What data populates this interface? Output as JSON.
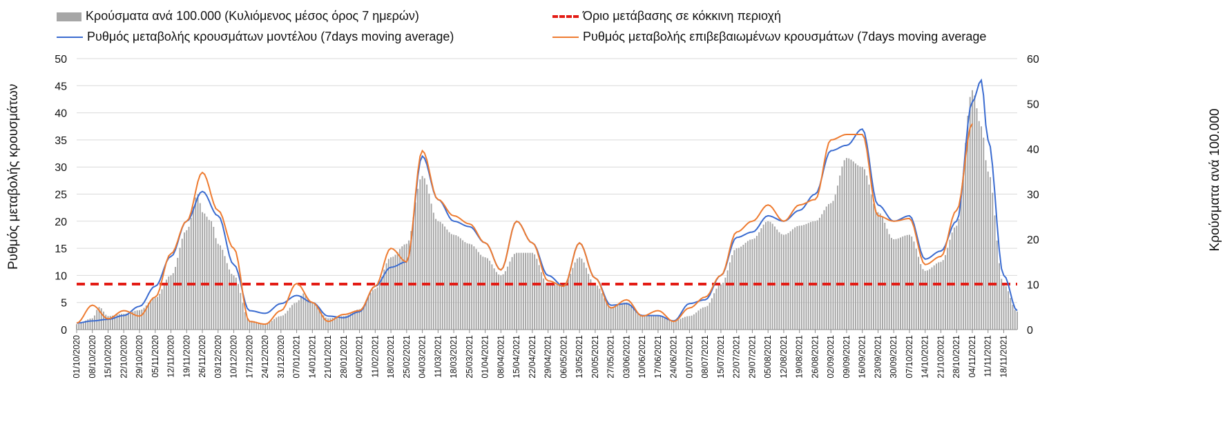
{
  "legend": {
    "bars": "Κρούσματα ανά 100.000 (Κυλιόμενος μέσος όρος 7 ημερών)",
    "threshold": "Όριο μετάβασης σε κόκκινη περιοχή",
    "model": "Ρυθμός μεταβολής κρουσμάτων μοντέλου (7days moving average)",
    "confirmed": "Ρυθμός μεταβολής επιβεβαιωμένων κρουσμάτων (7days moving average"
  },
  "colors": {
    "bars": "#a6a6a6",
    "threshold": "#e31b14",
    "model": "#3a6bd0",
    "confirmed": "#ee7b30",
    "grid": "#d9d9d9"
  },
  "chart_data": {
    "type": "bar",
    "ylabel_left": "Ρυθμός μεταβολής κρουσμάτων",
    "ylabel_right": "Κρούσματα ανά 100.000",
    "ylim_left": [
      0,
      50
    ],
    "ylim_right": [
      0,
      60
    ],
    "yticks_left": [
      "0",
      "5",
      "10",
      "15",
      "20",
      "25",
      "30",
      "35",
      "40",
      "45",
      "50"
    ],
    "yticks_right": [
      "0",
      "10",
      "20",
      "30",
      "40",
      "50",
      "60"
    ],
    "grid": true,
    "legend_position": "top",
    "x_start": "01/10/2020",
    "x_end": "24/11/2021",
    "x_tick_labels": [
      "01/10/2020",
      "08/10/2020",
      "15/10/2020",
      "22/10/2020",
      "29/10/2020",
      "05/11/2020",
      "12/11/2020",
      "19/11/2020",
      "26/11/2020",
      "03/12/2020",
      "10/12/2020",
      "17/12/2020",
      "24/12/2020",
      "31/12/2020",
      "07/01/2021",
      "14/01/2021",
      "21/01/2021",
      "28/01/2021",
      "04/02/2021",
      "11/02/2021",
      "18/02/2021",
      "25/02/2021",
      "04/03/2021",
      "11/03/2021",
      "18/03/2021",
      "25/03/2021",
      "01/04/2021",
      "08/04/2021",
      "15/04/2021",
      "22/04/2021",
      "29/04/2021",
      "06/05/2021",
      "13/05/2021",
      "20/05/2021",
      "27/05/2021",
      "03/06/2021",
      "10/06/2021",
      "17/06/2021",
      "24/06/2021",
      "01/07/2021",
      "08/07/2021",
      "15/07/2021",
      "22/07/2021",
      "29/07/2021",
      "05/08/2021",
      "12/08/2021",
      "19/08/2021",
      "26/08/2021",
      "02/09/2021",
      "09/09/2021",
      "16/09/2021",
      "23/09/2021",
      "30/09/2021",
      "07/10/2021",
      "14/10/2021",
      "21/10/2021",
      "28/10/2021",
      "04/11/2021",
      "11/11/2021",
      "18/11/2021"
    ],
    "threshold": {
      "name": "Όριο μετάβασης σε κόκκινη περιοχή",
      "value_left": 8.4
    },
    "series": [
      {
        "name": "Κρούσματα ανά 100.000 (Κυλιόμενος μέσος όρος 7 ημερών)",
        "axis": "right",
        "kind": "bar",
        "points": [
          [
            "01/10/2020",
            1.2
          ],
          [
            "08/10/2020",
            2.5
          ],
          [
            "11/10/2020",
            5
          ],
          [
            "15/10/2020",
            3
          ],
          [
            "22/10/2020",
            3.5
          ],
          [
            "29/10/2020",
            4.3
          ],
          [
            "05/11/2020",
            7
          ],
          [
            "12/11/2020",
            12
          ],
          [
            "19/11/2020",
            22
          ],
          [
            "24/11/2020",
            30
          ],
          [
            "26/11/2020",
            26
          ],
          [
            "30/11/2020",
            24
          ],
          [
            "03/12/2020",
            19
          ],
          [
            "10/12/2020",
            12
          ],
          [
            "17/12/2020",
            2
          ],
          [
            "24/12/2020",
            1.3
          ],
          [
            "31/12/2020",
            3
          ],
          [
            "07/01/2021",
            6
          ],
          [
            "10/01/2021",
            8
          ],
          [
            "14/01/2021",
            6
          ],
          [
            "21/01/2021",
            2.5
          ],
          [
            "28/01/2021",
            3
          ],
          [
            "04/02/2021",
            4.5
          ],
          [
            "11/02/2021",
            9
          ],
          [
            "18/02/2021",
            16
          ],
          [
            "25/02/2021",
            19
          ],
          [
            "04/03/2021",
            34
          ],
          [
            "11/03/2021",
            24
          ],
          [
            "18/03/2021",
            21
          ],
          [
            "25/03/2021",
            19
          ],
          [
            "01/04/2021",
            16
          ],
          [
            "08/04/2021",
            12
          ],
          [
            "15/04/2021",
            17
          ],
          [
            "22/04/2021",
            17
          ],
          [
            "29/04/2021",
            10
          ],
          [
            "06/05/2021",
            10
          ],
          [
            "13/05/2021",
            16
          ],
          [
            "20/05/2021",
            10
          ],
          [
            "27/05/2021",
            5
          ],
          [
            "03/06/2021",
            6
          ],
          [
            "10/06/2021",
            3
          ],
          [
            "17/06/2021",
            3
          ],
          [
            "24/06/2021",
            2
          ],
          [
            "01/07/2021",
            3
          ],
          [
            "08/07/2021",
            5
          ],
          [
            "15/07/2021",
            10
          ],
          [
            "22/07/2021",
            18
          ],
          [
            "29/07/2021",
            20
          ],
          [
            "05/08/2021",
            24
          ],
          [
            "12/08/2021",
            21
          ],
          [
            "19/08/2021",
            23
          ],
          [
            "26/08/2021",
            24
          ],
          [
            "02/09/2021",
            28
          ],
          [
            "09/09/2021",
            38
          ],
          [
            "16/09/2021",
            36
          ],
          [
            "23/09/2021",
            26
          ],
          [
            "30/09/2021",
            20
          ],
          [
            "07/10/2021",
            21
          ],
          [
            "14/10/2021",
            13
          ],
          [
            "21/10/2021",
            15
          ],
          [
            "28/10/2021",
            23
          ],
          [
            "04/11/2021",
            53
          ],
          [
            "08/11/2021",
            45
          ],
          [
            "11/11/2021",
            35
          ],
          [
            "18/11/2021",
            10
          ],
          [
            "24/11/2021",
            4
          ]
        ]
      },
      {
        "name": "Ρυθμός μεταβολής κρουσμάτων μοντέλου (7days moving average)",
        "axis": "left",
        "kind": "line",
        "points": [
          [
            "01/10/2020",
            1.2
          ],
          [
            "08/10/2020",
            1.6
          ],
          [
            "15/10/2020",
            1.9
          ],
          [
            "22/10/2020",
            2.6
          ],
          [
            "29/10/2020",
            4.3
          ],
          [
            "05/11/2020",
            8
          ],
          [
            "12/11/2020",
            13.5
          ],
          [
            "19/11/2020",
            20
          ],
          [
            "26/11/2020",
            25.5
          ],
          [
            "03/12/2020",
            21
          ],
          [
            "10/12/2020",
            12
          ],
          [
            "17/12/2020",
            3.5
          ],
          [
            "24/12/2020",
            3
          ],
          [
            "31/12/2020",
            4.8
          ],
          [
            "07/01/2021",
            6.3
          ],
          [
            "14/01/2021",
            5
          ],
          [
            "21/01/2021",
            2.5
          ],
          [
            "28/01/2021",
            2.2
          ],
          [
            "04/02/2021",
            3.3
          ],
          [
            "11/02/2021",
            8
          ],
          [
            "18/02/2021",
            11.5
          ],
          [
            "25/02/2021",
            12.5
          ],
          [
            "04/03/2021",
            32
          ],
          [
            "11/03/2021",
            24
          ],
          [
            "18/03/2021",
            20
          ],
          [
            "25/03/2021",
            19
          ],
          [
            "01/04/2021",
            16
          ],
          [
            "08/04/2021",
            11
          ],
          [
            "15/04/2021",
            20
          ],
          [
            "22/04/2021",
            16
          ],
          [
            "29/04/2021",
            10
          ],
          [
            "06/05/2021",
            8
          ],
          [
            "13/05/2021",
            16
          ],
          [
            "20/05/2021",
            9.5
          ],
          [
            "27/05/2021",
            4.5
          ],
          [
            "03/06/2021",
            4.8
          ],
          [
            "10/06/2021",
            2.6
          ],
          [
            "17/06/2021",
            2.6
          ],
          [
            "24/06/2021",
            1.6
          ],
          [
            "01/07/2021",
            4.8
          ],
          [
            "08/07/2021",
            5.5
          ],
          [
            "15/07/2021",
            10
          ],
          [
            "22/07/2021",
            17
          ],
          [
            "29/07/2021",
            18
          ],
          [
            "05/08/2021",
            21
          ],
          [
            "12/08/2021",
            20
          ],
          [
            "19/08/2021",
            22
          ],
          [
            "26/08/2021",
            25
          ],
          [
            "02/09/2021",
            33
          ],
          [
            "09/09/2021",
            34
          ],
          [
            "16/09/2021",
            37
          ],
          [
            "23/09/2021",
            23
          ],
          [
            "30/09/2021",
            20
          ],
          [
            "07/10/2021",
            21
          ],
          [
            "14/10/2021",
            13
          ],
          [
            "21/10/2021",
            14.5
          ],
          [
            "28/10/2021",
            20
          ],
          [
            "04/11/2021",
            42
          ],
          [
            "08/11/2021",
            46
          ],
          [
            "11/11/2021",
            35
          ],
          [
            "18/11/2021",
            10
          ],
          [
            "24/11/2021",
            3.5
          ]
        ]
      },
      {
        "name": "Ρυθμός μεταβολής επιβεβαιωμένων κρουσμάτων (7days moving average",
        "axis": "left",
        "kind": "line",
        "points": [
          [
            "01/10/2020",
            1.2
          ],
          [
            "08/10/2020",
            4.5
          ],
          [
            "15/10/2020",
            2
          ],
          [
            "22/10/2020",
            3.5
          ],
          [
            "29/10/2020",
            2.5
          ],
          [
            "05/11/2020",
            6
          ],
          [
            "12/11/2020",
            14
          ],
          [
            "19/11/2020",
            20
          ],
          [
            "26/11/2020",
            29
          ],
          [
            "03/12/2020",
            22
          ],
          [
            "10/12/2020",
            15
          ],
          [
            "17/12/2020",
            1.5
          ],
          [
            "24/12/2020",
            1
          ],
          [
            "31/12/2020",
            3.5
          ],
          [
            "07/01/2021",
            8.5
          ],
          [
            "14/01/2021",
            5
          ],
          [
            "21/01/2021",
            1.5
          ],
          [
            "28/01/2021",
            2.8
          ],
          [
            "04/02/2021",
            3.5
          ],
          [
            "11/02/2021",
            8
          ],
          [
            "18/02/2021",
            15
          ],
          [
            "25/02/2021",
            12.5
          ],
          [
            "04/03/2021",
            33
          ],
          [
            "11/03/2021",
            24
          ],
          [
            "18/03/2021",
            21
          ],
          [
            "25/03/2021",
            19.5
          ],
          [
            "01/04/2021",
            16
          ],
          [
            "08/04/2021",
            11
          ],
          [
            "15/04/2021",
            20
          ],
          [
            "22/04/2021",
            16
          ],
          [
            "29/04/2021",
            9
          ],
          [
            "06/05/2021",
            8
          ],
          [
            "13/05/2021",
            16
          ],
          [
            "20/05/2021",
            9.5
          ],
          [
            "27/05/2021",
            4
          ],
          [
            "03/06/2021",
            5.5
          ],
          [
            "10/06/2021",
            2.5
          ],
          [
            "17/06/2021",
            3.5
          ],
          [
            "24/06/2021",
            1.5
          ],
          [
            "01/07/2021",
            4
          ],
          [
            "08/07/2021",
            6
          ],
          [
            "15/07/2021",
            10
          ],
          [
            "22/07/2021",
            18
          ],
          [
            "29/07/2021",
            20
          ],
          [
            "05/08/2021",
            23
          ],
          [
            "12/08/2021",
            20
          ],
          [
            "19/08/2021",
            23
          ],
          [
            "26/08/2021",
            24
          ],
          [
            "02/09/2021",
            35
          ],
          [
            "09/09/2021",
            36
          ],
          [
            "16/09/2021",
            36
          ],
          [
            "23/09/2021",
            21
          ],
          [
            "30/09/2021",
            20
          ],
          [
            "07/10/2021",
            20.5
          ],
          [
            "14/10/2021",
            12
          ],
          [
            "21/10/2021",
            13.5
          ],
          [
            "28/10/2021",
            22
          ],
          [
            "04/11/2021",
            38
          ]
        ]
      }
    ]
  }
}
